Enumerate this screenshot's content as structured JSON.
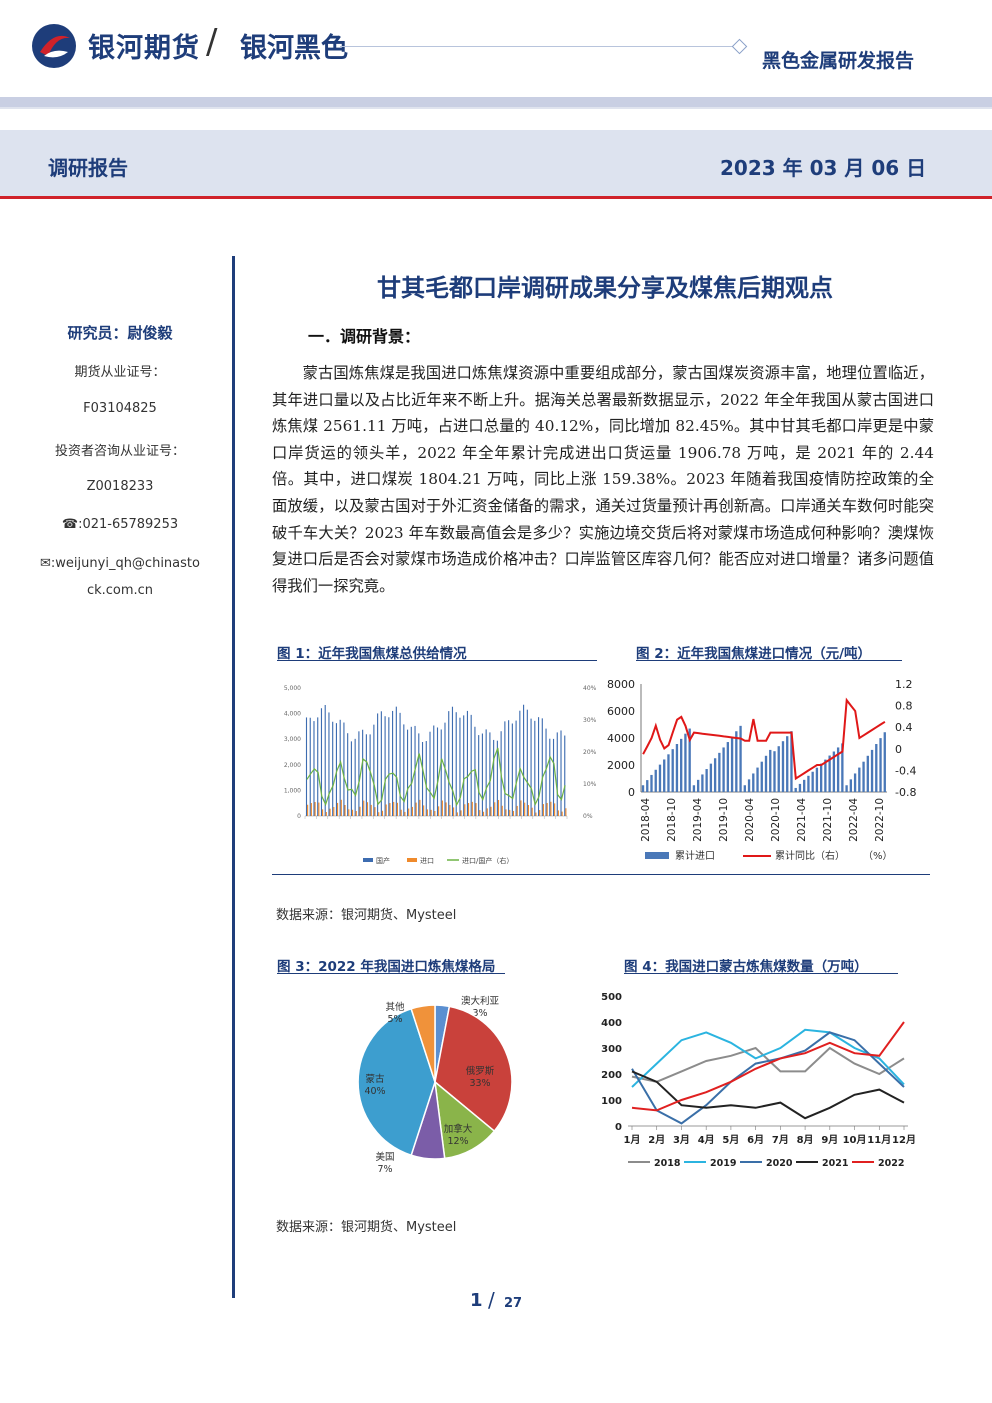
{
  "header": {
    "brand": "银河期货",
    "sub_brand": "银河黑色",
    "report_type": "黑色金属研发报告",
    "report_category": "调研报告",
    "date": "2023 年 03 月 06 日"
  },
  "sidebar": {
    "researcher": "研究员：尉俊毅",
    "license_label": "期货从业证号：",
    "license_no": "F03104825",
    "advisor_label": "投资者咨询从业证号：",
    "advisor_no": "Z0018233",
    "phone": "☎:021-65789253",
    "email_line1": "✉:weijunyi_qh@chinasto",
    "email_line2": "ck.com.cn"
  },
  "main": {
    "title": "甘其毛都口岸调研成果分享及煤焦后期观点",
    "section1": "一．调研背景：",
    "paragraph": "蒙古国炼焦煤是我国进口炼焦煤资源中重要组成部分，蒙古国煤炭资源丰富，地理位置临近，其年进口量以及占比近年来不断上升。据海关总署最新数据显示，2022 年全年我国从蒙古国进口炼焦煤 2561.11 万吨，占进口总量的 40.12%，同比增加 82.45%。其中甘其毛都口岸更是中蒙口岸货运的领头羊，2022 年全年累计完成进出口货运量 1906.78 万吨，是 2021 年的 2.44 倍。其中，进口煤炭 1804.21 万吨，同比上涨 159.38%。2023 年随着我国疫情防控政策的全面放缓，以及蒙古国对于外汇资金储备的需求，通关过货量预计再创新高。口岸通关车数何时能突破千车大关？2023 年车数最高值会是多少？实施边境交货后将对蒙煤市场造成何种影响？澳煤恢复进口后是否会对蒙煤市场造成价格冲击？口岸监管区库容几何？能否应对进口增量？诸多问题值得我们一探究竟。",
    "source1": "数据来源：银河期货、Mysteel",
    "source2": "数据来源：银河期货、Mysteel"
  },
  "figures": {
    "fig1_caption": "图 1：近年我国焦煤总供给情况",
    "fig2_caption": "图 2：近年我国焦煤进口情况（元/吨）",
    "fig3_caption": "图 3：2022 年我国进口炼焦煤格局",
    "fig4_caption": "图 4：我国进口蒙古炼焦煤数量（万吨）"
  },
  "chart_data": [
    {
      "type": "bar",
      "yticks_left": [
        "5,000",
        "4,000",
        "3,000",
        "2,000",
        "1,000",
        "0"
      ],
      "yticks_right": [
        "40%",
        "30%",
        "20%",
        "10%",
        "0%"
      ],
      "legend": [
        "国产",
        "进口",
        "进口/国产（右）"
      ]
    },
    {
      "type": "bar",
      "ylim": [
        0,
        8000
      ],
      "yticks_left": [
        "8000",
        "6000",
        "4000",
        "2000",
        "0"
      ],
      "yticks_right": [
        "1.2",
        "0.8",
        "0.4",
        "0",
        "-0.4",
        "-0.8"
      ],
      "categories": [
        "2018-04",
        "2018-10",
        "2019-04",
        "2019-10",
        "2020-04",
        "2020-10",
        "2021-04",
        "2021-10",
        "2022-04",
        "2022-10"
      ],
      "legend": [
        "累计进口",
        "累计同比（右）",
        "（%）"
      ]
    },
    {
      "type": "pie",
      "slices": [
        {
          "label": "澳大利亚",
          "pct_label": "3%",
          "value": 3,
          "color": "#5b8fd0"
        },
        {
          "label": "俄罗斯",
          "pct_label": "33%",
          "value": 33,
          "color": "#c9413b"
        },
        {
          "label": "加拿大",
          "pct_label": "12%",
          "value": 12,
          "color": "#8ab44a"
        },
        {
          "label": "美国",
          "pct_label": "7%",
          "value": 7,
          "color": "#7b5da8"
        },
        {
          "label": "蒙古",
          "pct_label": "40%",
          "value": 40,
          "color": "#3d9ecf"
        },
        {
          "label": "其他",
          "pct_label": "5%",
          "value": 5,
          "color": "#f0923a"
        }
      ]
    },
    {
      "type": "line",
      "ylim": [
        0,
        500
      ],
      "yticks": [
        "500",
        "400",
        "300",
        "200",
        "100",
        "0"
      ],
      "categories": [
        "1月",
        "2月",
        "3月",
        "4月",
        "5月",
        "6月",
        "7月",
        "8月",
        "9月",
        "10月",
        "11月",
        "12月"
      ],
      "series": [
        {
          "name": "2018",
          "color": "#8c8c8c",
          "values": [
            190,
            170,
            210,
            250,
            270,
            300,
            210,
            210,
            300,
            240,
            200,
            260
          ]
        },
        {
          "name": "2019",
          "color": "#2bb4e0",
          "values": [
            150,
            240,
            330,
            360,
            320,
            260,
            300,
            370,
            360,
            300,
            260,
            160
          ]
        },
        {
          "name": "2020",
          "color": "#3a6fa8",
          "values": [
            220,
            60,
            10,
            80,
            170,
            240,
            260,
            290,
            360,
            330,
            240,
            150
          ]
        },
        {
          "name": "2021",
          "color": "#222222",
          "values": [
            210,
            170,
            80,
            70,
            80,
            70,
            90,
            30,
            70,
            120,
            140,
            90
          ]
        },
        {
          "name": "2022",
          "color": "#e02020",
          "values": [
            70,
            60,
            100,
            130,
            170,
            220,
            260,
            280,
            320,
            280,
            270,
            400
          ]
        }
      ]
    }
  ]
}
